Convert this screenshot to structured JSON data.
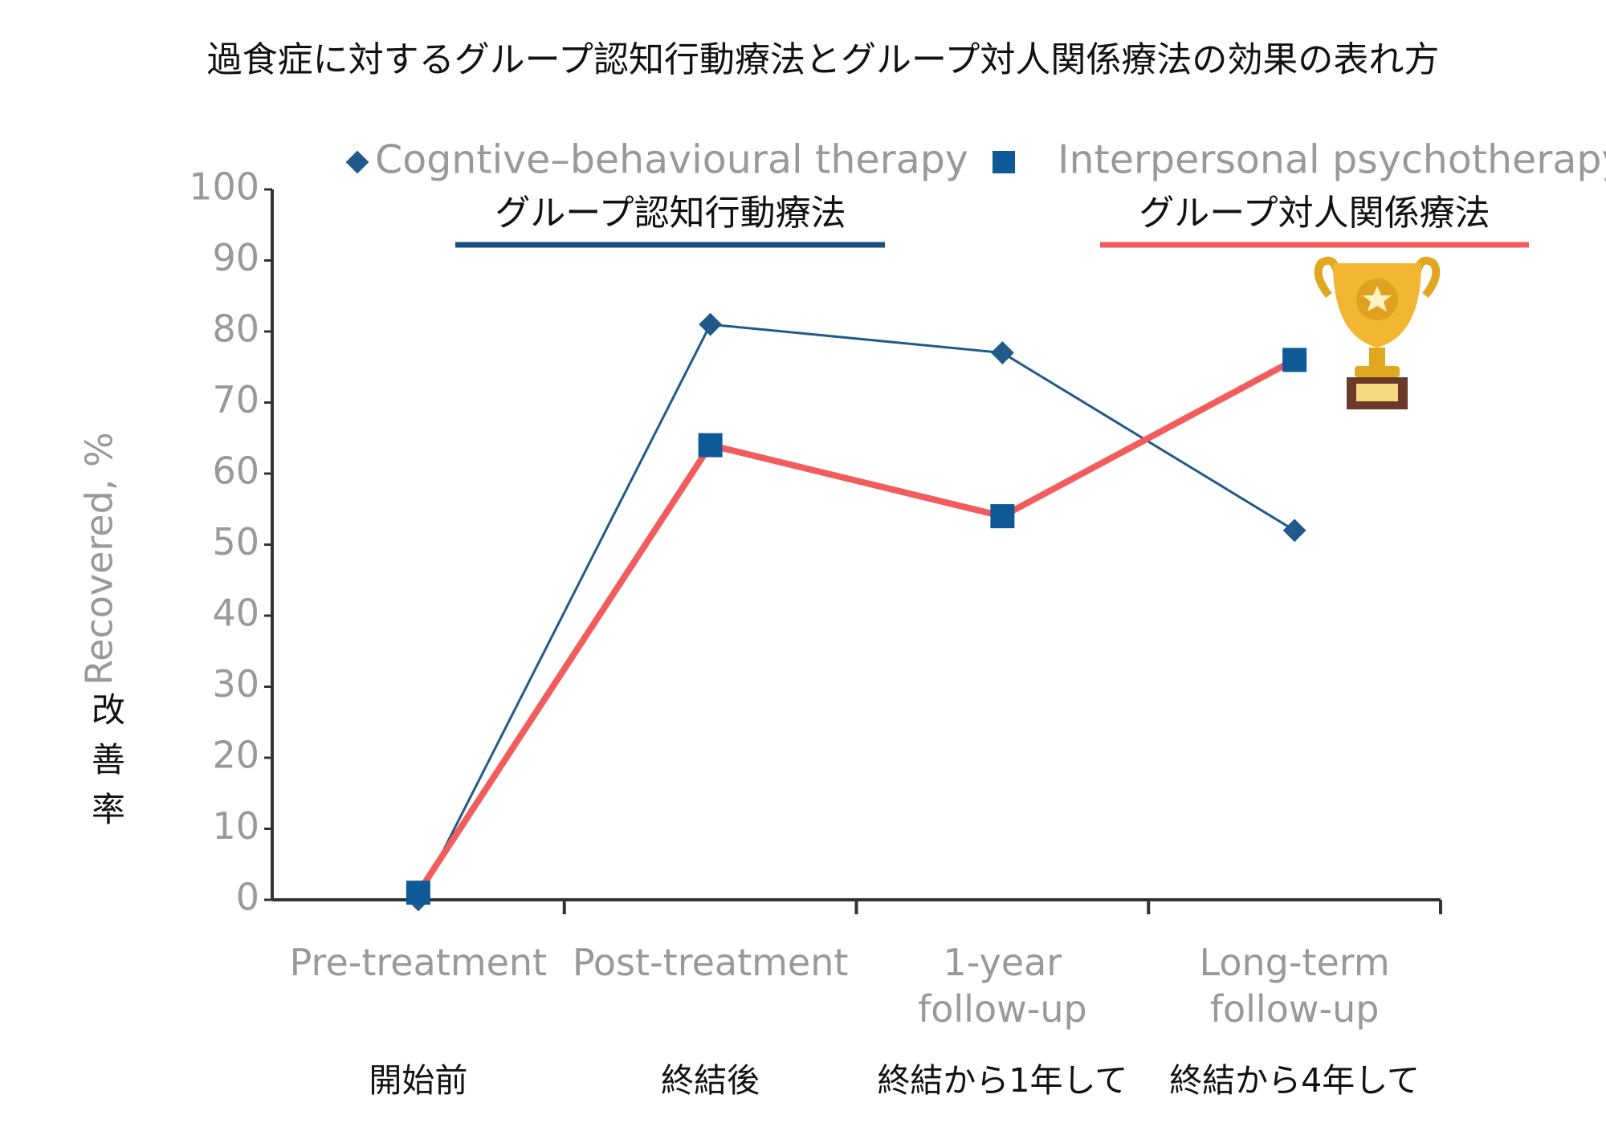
{
  "chart_data": {
    "type": "line",
    "title": "過食症に対するグループ認知行動療法とグループ対人関係療法の効果の表れ方",
    "y_label": "Recovered, %",
    "y_label_ja": "改善率",
    "categories": [
      "Pre-treatment",
      "Post-treatment",
      "1-year\nfollow-up",
      "Long-term\nfollow-up"
    ],
    "categories_ja": [
      "開始前",
      "終結後",
      "終結から1年して",
      "終結から4年して"
    ],
    "series": [
      {
        "name": "Cogntive–behavioural therapy",
        "name_ja": "グループ認知行動療法",
        "color": "#1f5a8a",
        "underline_color": "#1a4f7a",
        "marker": "diamond",
        "values": [
          0,
          81,
          77,
          52
        ]
      },
      {
        "name": "Interpersonal psychotherapy",
        "name_ja": "グループ対人関係療法",
        "color": "#0f5a96",
        "underline_color": "#f25c5c",
        "highlight_color": "#f25c5c",
        "marker": "square",
        "values": [
          1,
          64,
          54,
          76
        ]
      }
    ],
    "ylim": [
      0,
      100
    ],
    "yticks": [
      0,
      10,
      20,
      30,
      40,
      50,
      60,
      70,
      80,
      90,
      100
    ]
  }
}
